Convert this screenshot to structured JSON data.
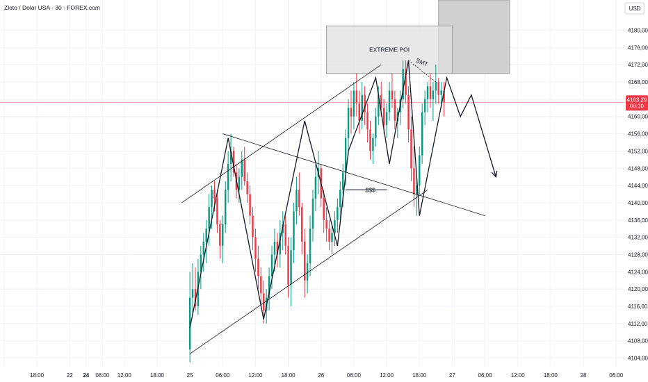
{
  "header": {
    "title": "Zloto / Dolar USA · 30 · FOREX.com"
  },
  "price_axis": {
    "unit_label": "USD"
  },
  "colors": {
    "up": "#089981",
    "down": "#f23645",
    "line": "#131722",
    "box_fill": "#e0e0e0",
    "box_stroke": "#9e9e9e"
  },
  "last_price": {
    "value": 4163.29,
    "label": "4163,29",
    "countdown": "00:10"
  },
  "annotations": {
    "box_label": "EXTREME POI",
    "smt_label": "SMT",
    "sss_label": "$$$"
  },
  "chart_data": {
    "type": "candlestick",
    "title": "Zloto / Dolar USA · 30 · FOREX.com",
    "interval": "30",
    "y_unit": "USD",
    "ylim": [
      4102,
      4187
    ],
    "y_ticks": [
      {
        "value": 4180,
        "label": "4180,00"
      },
      {
        "value": 4176,
        "label": "4176,00"
      },
      {
        "value": 4172,
        "label": "4172,00"
      },
      {
        "value": 4168,
        "label": "4168,00"
      },
      {
        "value": 4164,
        "label": "4164,00"
      },
      {
        "value": 4160,
        "label": "4160,00"
      },
      {
        "value": 4156,
        "label": "4156,00"
      },
      {
        "value": 4152,
        "label": "4152,00"
      },
      {
        "value": 4148,
        "label": "4148,00"
      },
      {
        "value": 4144,
        "label": "4144,00"
      },
      {
        "value": 4140,
        "label": "4140,00"
      },
      {
        "value": 4136,
        "label": "4136,00"
      },
      {
        "value": 4132,
        "label": "4132,00"
      },
      {
        "value": 4128,
        "label": "4128,00"
      },
      {
        "value": 4124,
        "label": "4124,00"
      },
      {
        "value": 4120,
        "label": "4120,00"
      },
      {
        "value": 4116,
        "label": "4116,00"
      },
      {
        "value": 4112,
        "label": "4112,00"
      },
      {
        "value": 4108,
        "label": "4108,00"
      },
      {
        "value": 4104,
        "label": "4104,00"
      }
    ],
    "x_ticks": [
      {
        "t": 0,
        "label": "12:00",
        "bold": false
      },
      {
        "t": 12,
        "label": "18:00",
        "bold": false
      },
      {
        "t": 24,
        "label": "22",
        "bold": false
      },
      {
        "t": 30,
        "label": "24",
        "bold": true
      },
      {
        "t": 36,
        "label": "08:00",
        "bold": false
      },
      {
        "t": 44,
        "label": "12:00",
        "bold": false
      },
      {
        "t": 56,
        "label": "18:00",
        "bold": false
      },
      {
        "t": 68,
        "label": "25",
        "bold": false
      },
      {
        "t": 80,
        "label": "06:00",
        "bold": false
      },
      {
        "t": 92,
        "label": "12:00",
        "bold": false
      },
      {
        "t": 104,
        "label": "18:00",
        "bold": false
      },
      {
        "t": 116,
        "label": "26",
        "bold": false
      },
      {
        "t": 128,
        "label": "06:00",
        "bold": false
      },
      {
        "t": 140,
        "label": "12:00",
        "bold": false
      },
      {
        "t": 152,
        "label": "18:00",
        "bold": false
      },
      {
        "t": 164,
        "label": "27",
        "bold": false
      },
      {
        "t": 176,
        "label": "06:00",
        "bold": false
      },
      {
        "t": 188,
        "label": "12:00",
        "bold": false
      },
      {
        "t": 200,
        "label": "18:00",
        "bold": false
      },
      {
        "t": 212,
        "label": "28",
        "bold": false
      },
      {
        "t": 224,
        "label": "06:00",
        "bold": false
      }
    ],
    "candles": [
      {
        "t": 68,
        "o": 4106,
        "h": 4124,
        "l": 4103,
        "c": 4118
      },
      {
        "t": 69,
        "o": 4118,
        "h": 4126,
        "l": 4114,
        "c": 4120
      },
      {
        "t": 70,
        "o": 4120,
        "h": 4125,
        "l": 4115,
        "c": 4116
      },
      {
        "t": 71,
        "o": 4116,
        "h": 4127,
        "l": 4114,
        "c": 4124
      },
      {
        "t": 72,
        "o": 4124,
        "h": 4130,
        "l": 4120,
        "c": 4128
      },
      {
        "t": 73,
        "o": 4128,
        "h": 4133,
        "l": 4124,
        "c": 4131
      },
      {
        "t": 74,
        "o": 4131,
        "h": 4136,
        "l": 4126,
        "c": 4134
      },
      {
        "t": 75,
        "o": 4134,
        "h": 4142,
        "l": 4130,
        "c": 4139
      },
      {
        "t": 76,
        "o": 4139,
        "h": 4144,
        "l": 4134,
        "c": 4143
      },
      {
        "t": 77,
        "o": 4143,
        "h": 4145,
        "l": 4138,
        "c": 4141
      },
      {
        "t": 78,
        "o": 4141,
        "h": 4143,
        "l": 4133,
        "c": 4135
      },
      {
        "t": 79,
        "o": 4135,
        "h": 4136,
        "l": 4127,
        "c": 4130
      },
      {
        "t": 80,
        "o": 4130,
        "h": 4137,
        "l": 4126,
        "c": 4135
      },
      {
        "t": 81,
        "o": 4135,
        "h": 4145,
        "l": 4133,
        "c": 4143
      },
      {
        "t": 82,
        "o": 4143,
        "h": 4152,
        "l": 4140,
        "c": 4149
      },
      {
        "t": 83,
        "o": 4149,
        "h": 4156,
        "l": 4145,
        "c": 4152
      },
      {
        "t": 84,
        "o": 4152,
        "h": 4153,
        "l": 4146,
        "c": 4147
      },
      {
        "t": 85,
        "o": 4147,
        "h": 4149,
        "l": 4141,
        "c": 4143
      },
      {
        "t": 86,
        "o": 4143,
        "h": 4148,
        "l": 4140,
        "c": 4146
      },
      {
        "t": 87,
        "o": 4146,
        "h": 4152,
        "l": 4143,
        "c": 4150
      },
      {
        "t": 88,
        "o": 4150,
        "h": 4153,
        "l": 4144,
        "c": 4145
      },
      {
        "t": 89,
        "o": 4145,
        "h": 4147,
        "l": 4140,
        "c": 4142
      },
      {
        "t": 90,
        "o": 4142,
        "h": 4144,
        "l": 4135,
        "c": 4137
      },
      {
        "t": 91,
        "o": 4137,
        "h": 4139,
        "l": 4129,
        "c": 4132
      },
      {
        "t": 92,
        "o": 4132,
        "h": 4134,
        "l": 4124,
        "c": 4127
      },
      {
        "t": 93,
        "o": 4127,
        "h": 4130,
        "l": 4120,
        "c": 4123
      },
      {
        "t": 94,
        "o": 4123,
        "h": 4125,
        "l": 4116,
        "c": 4119
      },
      {
        "t": 95,
        "o": 4119,
        "h": 4122,
        "l": 4112,
        "c": 4115
      },
      {
        "t": 96,
        "o": 4115,
        "h": 4120,
        "l": 4112,
        "c": 4118
      },
      {
        "t": 97,
        "o": 4118,
        "h": 4125,
        "l": 4115,
        "c": 4123
      },
      {
        "t": 98,
        "o": 4123,
        "h": 4130,
        "l": 4120,
        "c": 4128
      },
      {
        "t": 99,
        "o": 4128,
        "h": 4134,
        "l": 4124,
        "c": 4131
      },
      {
        "t": 100,
        "o": 4131,
        "h": 4133,
        "l": 4125,
        "c": 4128
      },
      {
        "t": 101,
        "o": 4128,
        "h": 4136,
        "l": 4125,
        "c": 4133
      },
      {
        "t": 102,
        "o": 4133,
        "h": 4138,
        "l": 4129,
        "c": 4135
      },
      {
        "t": 103,
        "o": 4135,
        "h": 4137,
        "l": 4128,
        "c": 4130
      },
      {
        "t": 104,
        "o": 4130,
        "h": 4132,
        "l": 4118,
        "c": 4121
      },
      {
        "t": 105,
        "o": 4121,
        "h": 4132,
        "l": 4116,
        "c": 4129
      },
      {
        "t": 106,
        "o": 4129,
        "h": 4140,
        "l": 4126,
        "c": 4138
      },
      {
        "t": 107,
        "o": 4138,
        "h": 4146,
        "l": 4135,
        "c": 4143
      },
      {
        "t": 108,
        "o": 4143,
        "h": 4147,
        "l": 4137,
        "c": 4139
      },
      {
        "t": 109,
        "o": 4139,
        "h": 4140,
        "l": 4128,
        "c": 4131
      },
      {
        "t": 110,
        "o": 4131,
        "h": 4134,
        "l": 4118,
        "c": 4122
      },
      {
        "t": 111,
        "o": 4122,
        "h": 4128,
        "l": 4119,
        "c": 4126
      },
      {
        "t": 112,
        "o": 4126,
        "h": 4137,
        "l": 4123,
        "c": 4134
      },
      {
        "t": 113,
        "o": 4134,
        "h": 4143,
        "l": 4131,
        "c": 4141
      },
      {
        "t": 114,
        "o": 4141,
        "h": 4149,
        "l": 4138,
        "c": 4146
      },
      {
        "t": 115,
        "o": 4146,
        "h": 4152,
        "l": 4142,
        "c": 4148
      },
      {
        "t": 116,
        "o": 4148,
        "h": 4149,
        "l": 4139,
        "c": 4141
      },
      {
        "t": 117,
        "o": 4141,
        "h": 4143,
        "l": 4133,
        "c": 4136
      },
      {
        "t": 118,
        "o": 4136,
        "h": 4139,
        "l": 4131,
        "c": 4134
      },
      {
        "t": 119,
        "o": 4134,
        "h": 4136,
        "l": 4129,
        "c": 4131
      },
      {
        "t": 120,
        "o": 4131,
        "h": 4135,
        "l": 4128,
        "c": 4133
      },
      {
        "t": 121,
        "o": 4133,
        "h": 4138,
        "l": 4130,
        "c": 4136
      },
      {
        "t": 122,
        "o": 4136,
        "h": 4141,
        "l": 4133,
        "c": 4139
      },
      {
        "t": 123,
        "o": 4139,
        "h": 4145,
        "l": 4136,
        "c": 4143
      },
      {
        "t": 124,
        "o": 4143,
        "h": 4149,
        "l": 4139,
        "c": 4147
      },
      {
        "t": 125,
        "o": 4147,
        "h": 4157,
        "l": 4144,
        "c": 4155
      },
      {
        "t": 126,
        "o": 4155,
        "h": 4164,
        "l": 4151,
        "c": 4162
      },
      {
        "t": 127,
        "o": 4162,
        "h": 4166,
        "l": 4156,
        "c": 4160
      },
      {
        "t": 128,
        "o": 4160,
        "h": 4168,
        "l": 4157,
        "c": 4166
      },
      {
        "t": 129,
        "o": 4166,
        "h": 4170,
        "l": 4160,
        "c": 4163
      },
      {
        "t": 130,
        "o": 4163,
        "h": 4166,
        "l": 4156,
        "c": 4159
      },
      {
        "t": 131,
        "o": 4159,
        "h": 4168,
        "l": 4157,
        "c": 4165
      },
      {
        "t": 132,
        "o": 4165,
        "h": 4167,
        "l": 4158,
        "c": 4161
      },
      {
        "t": 133,
        "o": 4161,
        "h": 4163,
        "l": 4154,
        "c": 4157
      },
      {
        "t": 134,
        "o": 4157,
        "h": 4159,
        "l": 4150,
        "c": 4152
      },
      {
        "t": 135,
        "o": 4152,
        "h": 4156,
        "l": 4149,
        "c": 4155
      },
      {
        "t": 136,
        "o": 4155,
        "h": 4162,
        "l": 4153,
        "c": 4160
      },
      {
        "t": 137,
        "o": 4160,
        "h": 4167,
        "l": 4158,
        "c": 4165
      },
      {
        "t": 138,
        "o": 4165,
        "h": 4168,
        "l": 4160,
        "c": 4162
      },
      {
        "t": 139,
        "o": 4162,
        "h": 4164,
        "l": 4156,
        "c": 4158
      },
      {
        "t": 140,
        "o": 4158,
        "h": 4163,
        "l": 4155,
        "c": 4161
      },
      {
        "t": 141,
        "o": 4161,
        "h": 4168,
        "l": 4159,
        "c": 4166
      },
      {
        "t": 142,
        "o": 4166,
        "h": 4170,
        "l": 4162,
        "c": 4164
      },
      {
        "t": 143,
        "o": 4164,
        "h": 4166,
        "l": 4157,
        "c": 4159
      },
      {
        "t": 144,
        "o": 4159,
        "h": 4162,
        "l": 4155,
        "c": 4161
      },
      {
        "t": 145,
        "o": 4161,
        "h": 4166,
        "l": 4158,
        "c": 4164
      },
      {
        "t": 146,
        "o": 4164,
        "h": 4173,
        "l": 4162,
        "c": 4171
      },
      {
        "t": 147,
        "o": 4171,
        "h": 4173,
        "l": 4163,
        "c": 4165
      },
      {
        "t": 148,
        "o": 4165,
        "h": 4167,
        "l": 4154,
        "c": 4157
      },
      {
        "t": 149,
        "o": 4157,
        "h": 4160,
        "l": 4145,
        "c": 4148
      },
      {
        "t": 150,
        "o": 4148,
        "h": 4153,
        "l": 4139,
        "c": 4142
      },
      {
        "t": 151,
        "o": 4142,
        "h": 4146,
        "l": 4137,
        "c": 4144
      },
      {
        "t": 152,
        "o": 4144,
        "h": 4153,
        "l": 4142,
        "c": 4151
      },
      {
        "t": 153,
        "o": 4151,
        "h": 4163,
        "l": 4149,
        "c": 4161
      },
      {
        "t": 154,
        "o": 4161,
        "h": 4166,
        "l": 4158,
        "c": 4164
      },
      {
        "t": 155,
        "o": 4164,
        "h": 4168,
        "l": 4161,
        "c": 4167
      },
      {
        "t": 156,
        "o": 4167,
        "h": 4170,
        "l": 4162,
        "c": 4164
      },
      {
        "t": 157,
        "o": 4164,
        "h": 4168,
        "l": 4159,
        "c": 4166
      },
      {
        "t": 158,
        "o": 4166,
        "h": 4172,
        "l": 4163,
        "c": 4168
      },
      {
        "t": 159,
        "o": 4168,
        "h": 4169,
        "l": 4163,
        "c": 4165
      },
      {
        "t": 160,
        "o": 4165,
        "h": 4168,
        "l": 4162,
        "c": 4166
      },
      {
        "t": 161,
        "o": 4166,
        "h": 4168,
        "l": 4160,
        "c": 4163.29
      }
    ],
    "drawings": {
      "channel_upper": [
        [
          65,
          4140
        ],
        [
          138,
          4172
        ]
      ],
      "channel_lower": [
        [
          68,
          4105
        ],
        [
          155,
          4143
        ]
      ],
      "sss_trend": [
        [
          80,
          4156
        ],
        [
          176,
          4137
        ]
      ],
      "sss_level": [
        [
          125,
          4143
        ],
        [
          140,
          4143
        ]
      ],
      "swing_path": [
        [
          68,
          4111
        ],
        [
          82,
          4155
        ],
        [
          95,
          4113
        ],
        [
          110,
          4159
        ],
        [
          122,
          4130
        ],
        [
          126,
          4152
        ],
        [
          136,
          4169
        ],
        [
          141,
          4149
        ],
        [
          148,
          4173
        ],
        [
          152,
          4137
        ],
        [
          162,
          4169
        ],
        [
          167,
          4160
        ],
        [
          171,
          4165
        ],
        [
          180,
          4146
        ]
      ],
      "smt_line": [
        [
          148,
          4173
        ],
        [
          158,
          4168
        ]
      ],
      "poi_zone": {
        "t0": 118,
        "t1": 164,
        "p0": 4170,
        "p1": 4181
      },
      "upper_zone": {
        "t0": 159,
        "t1": 185,
        "p0": 4170,
        "p1": 4187
      }
    }
  }
}
